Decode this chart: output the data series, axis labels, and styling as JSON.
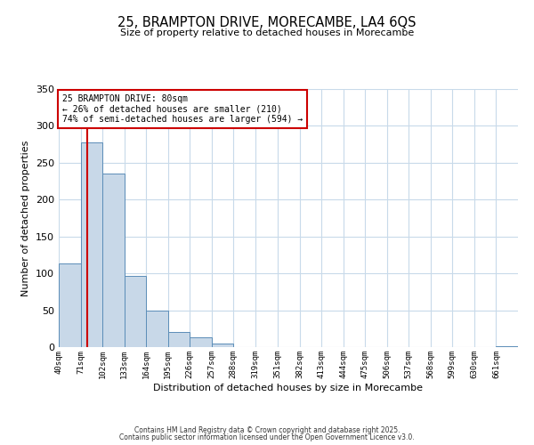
{
  "title": "25, BRAMPTON DRIVE, MORECAMBE, LA4 6QS",
  "subtitle": "Size of property relative to detached houses in Morecambe",
  "xlabel": "Distribution of detached houses by size in Morecambe",
  "ylabel": "Number of detached properties",
  "bin_labels": [
    "40sqm",
    "71sqm",
    "102sqm",
    "133sqm",
    "164sqm",
    "195sqm",
    "226sqm",
    "257sqm",
    "288sqm",
    "319sqm",
    "351sqm",
    "382sqm",
    "413sqm",
    "444sqm",
    "475sqm",
    "506sqm",
    "537sqm",
    "568sqm",
    "599sqm",
    "630sqm",
    "661sqm"
  ],
  "bin_edges": [
    40,
    71,
    102,
    133,
    164,
    195,
    226,
    257,
    288,
    319,
    351,
    382,
    413,
    444,
    475,
    506,
    537,
    568,
    599,
    630,
    661
  ],
  "counts": [
    113,
    278,
    235,
    97,
    49,
    20,
    13,
    5,
    0,
    0,
    0,
    0,
    0,
    0,
    0,
    0,
    0,
    0,
    0,
    0,
    1
  ],
  "bar_color": "#c8d8e8",
  "bar_edge_color": "#5b8db8",
  "vline_color": "#cc0000",
  "vline_x": 80,
  "annotation_text": "25 BRAMPTON DRIVE: 80sqm\n← 26% of detached houses are smaller (210)\n74% of semi-detached houses are larger (594) →",
  "annotation_box_color": "#ffffff",
  "annotation_box_edge": "#cc0000",
  "ylim": [
    0,
    350
  ],
  "yticks": [
    0,
    50,
    100,
    150,
    200,
    250,
    300,
    350
  ],
  "background_color": "#ffffff",
  "grid_color": "#c8daea",
  "footer1": "Contains HM Land Registry data © Crown copyright and database right 2025.",
  "footer2": "Contains public sector information licensed under the Open Government Licence v3.0."
}
